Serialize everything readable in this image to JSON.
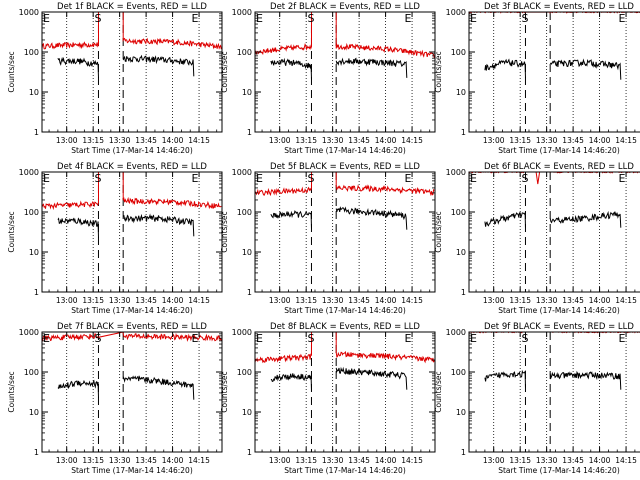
{
  "layout": {
    "cols": 3
  },
  "common": {
    "ylabel": "Counts/sec",
    "xlabel": "Start Time (17-Mar-14 14:46:20)",
    "x_ticks": [
      "13:00",
      "13:15",
      "13:30",
      "13:45",
      "14:00",
      "14:15"
    ],
    "y_ticks": [
      "1",
      "10",
      "100",
      "1000"
    ],
    "y_scale": "log",
    "ylim": [
      1,
      1000
    ],
    "markers": [
      "E",
      "S",
      "E"
    ],
    "series": [
      {
        "name": "Events",
        "color": "#000000"
      },
      {
        "name": "LLD",
        "color": "#dd0000"
      }
    ]
  },
  "chart_data": [
    {
      "type": "line",
      "title": "Det 1f BLACK = Events, RED = LLD",
      "events": {
        "seg1": [
          60,
          60,
          50
        ],
        "seg2": [
          70,
          65,
          55
        ]
      },
      "lld": {
        "seg1": [
          140,
          150,
          155
        ],
        "seg2": [
          190,
          180,
          135
        ],
        "spike": "high"
      }
    },
    {
      "type": "line",
      "title": "Det 2f BLACK = Events, RED = LLD",
      "events": {
        "seg1": [
          55,
          55,
          45
        ],
        "seg2": [
          60,
          58,
          50
        ]
      },
      "lld": {
        "seg1": [
          100,
          120,
          140
        ],
        "seg2": [
          140,
          120,
          80
        ],
        "spike": "high"
      }
    },
    {
      "type": "line",
      "title": "Det 3f BLACK = Events, RED = LLD",
      "events": {
        "seg1": [
          40,
          55,
          50
        ],
        "seg2": [
          50,
          55,
          45
        ]
      },
      "lld": {
        "seg1": [
          1000,
          1000,
          1000
        ],
        "seg2": [
          1000,
          1000,
          1000
        ],
        "spike": "none"
      }
    },
    {
      "type": "line",
      "title": "Det 4f BLACK = Events, RED = LLD",
      "events": {
        "seg1": [
          60,
          60,
          50
        ],
        "seg2": [
          70,
          70,
          55
        ]
      },
      "lld": {
        "seg1": [
          140,
          150,
          160
        ],
        "seg2": [
          190,
          180,
          140
        ],
        "spike": "high"
      }
    },
    {
      "type": "line",
      "title": "Det 5f BLACK = Events, RED = LLD",
      "events": {
        "seg1": [
          80,
          90,
          85
        ],
        "seg2": [
          110,
          100,
          80
        ]
      },
      "lld": {
        "seg1": [
          300,
          330,
          360
        ],
        "seg2": [
          400,
          380,
          310
        ],
        "spike": "high"
      }
    },
    {
      "type": "line",
      "title": "Det 6f BLACK = Events, RED = LLD",
      "events": {
        "seg1": [
          50,
          70,
          90
        ],
        "seg2": [
          60,
          70,
          90
        ]
      },
      "lld": {
        "seg1": [
          1000,
          1000,
          1000
        ],
        "seg2": [
          1000,
          1000,
          1000
        ],
        "spike": "dip"
      }
    },
    {
      "type": "line",
      "title": "Det 7f BLACK = Events, RED = LLD",
      "events": {
        "seg1": [
          40,
          55,
          50
        ],
        "seg2": [
          70,
          60,
          45
        ]
      },
      "lld": {
        "seg1": [
          700,
          750,
          800
        ],
        "seg2": [
          800,
          750,
          700
        ],
        "spike": "none"
      }
    },
    {
      "type": "line",
      "title": "Det 8f BLACK = Events, RED = LLD",
      "events": {
        "seg1": [
          70,
          80,
          75
        ],
        "seg2": [
          110,
          95,
          80
        ]
      },
      "lld": {
        "seg1": [
          200,
          220,
          240
        ],
        "seg2": [
          280,
          250,
          200
        ],
        "spike": "high"
      }
    },
    {
      "type": "line",
      "title": "Det 9f BLACK = Events, RED = LLD",
      "events": {
        "seg1": [
          70,
          90,
          90
        ],
        "seg2": [
          80,
          85,
          80
        ]
      },
      "lld": {
        "seg1": [
          1000,
          1000,
          1000
        ],
        "seg2": [
          1000,
          1000,
          1000
        ],
        "spike": "none"
      }
    }
  ]
}
